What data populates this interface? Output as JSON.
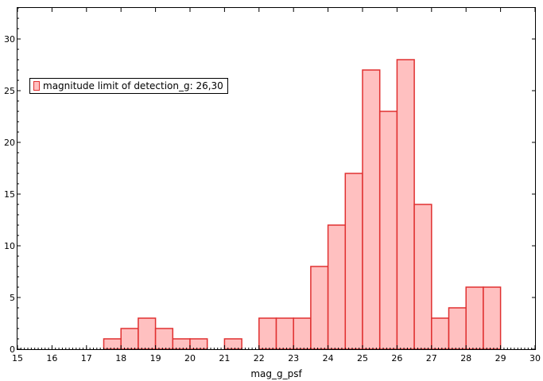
{
  "chart_data": {
    "type": "bar",
    "xlabel": "mag_g_psf",
    "ylabel": "",
    "xlim": [
      15,
      30
    ],
    "ylim": [
      0,
      33
    ],
    "x_ticks": [
      "15",
      "16",
      "17",
      "18",
      "19",
      "20",
      "21",
      "22",
      "23",
      "24",
      "25",
      "26",
      "27",
      "28",
      "29",
      "30"
    ],
    "y_ticks": [
      "0",
      "5",
      "10",
      "15",
      "20",
      "25",
      "30"
    ],
    "bin_width": 0.5,
    "bins": [
      {
        "start": 17.5,
        "end": 18.0,
        "count": 1
      },
      {
        "start": 18.0,
        "end": 18.5,
        "count": 2
      },
      {
        "start": 18.5,
        "end": 19.0,
        "count": 3
      },
      {
        "start": 19.0,
        "end": 19.5,
        "count": 2
      },
      {
        "start": 19.5,
        "end": 20.0,
        "count": 1
      },
      {
        "start": 20.0,
        "end": 20.5,
        "count": 1
      },
      {
        "start": 21.0,
        "end": 21.5,
        "count": 1
      },
      {
        "start": 22.0,
        "end": 22.5,
        "count": 3
      },
      {
        "start": 22.5,
        "end": 23.0,
        "count": 3
      },
      {
        "start": 23.0,
        "end": 23.5,
        "count": 3
      },
      {
        "start": 23.5,
        "end": 24.0,
        "count": 8
      },
      {
        "start": 24.0,
        "end": 24.5,
        "count": 12
      },
      {
        "start": 24.5,
        "end": 25.0,
        "count": 17
      },
      {
        "start": 25.0,
        "end": 25.5,
        "count": 27
      },
      {
        "start": 25.5,
        "end": 26.0,
        "count": 23
      },
      {
        "start": 26.0,
        "end": 26.5,
        "count": 28
      },
      {
        "start": 26.5,
        "end": 27.0,
        "count": 14
      },
      {
        "start": 27.0,
        "end": 27.5,
        "count": 3
      },
      {
        "start": 27.5,
        "end": 28.0,
        "count": 4
      },
      {
        "start": 28.0,
        "end": 28.5,
        "count": 6
      },
      {
        "start": 28.5,
        "end": 29.0,
        "count": 6
      }
    ],
    "series": [
      {
        "name": "magnitude limit of detection_g: 26,30",
        "color": "#ffc0c0",
        "edge_color": "#e03030"
      }
    ],
    "legend_position": "top-left",
    "grid": false
  }
}
